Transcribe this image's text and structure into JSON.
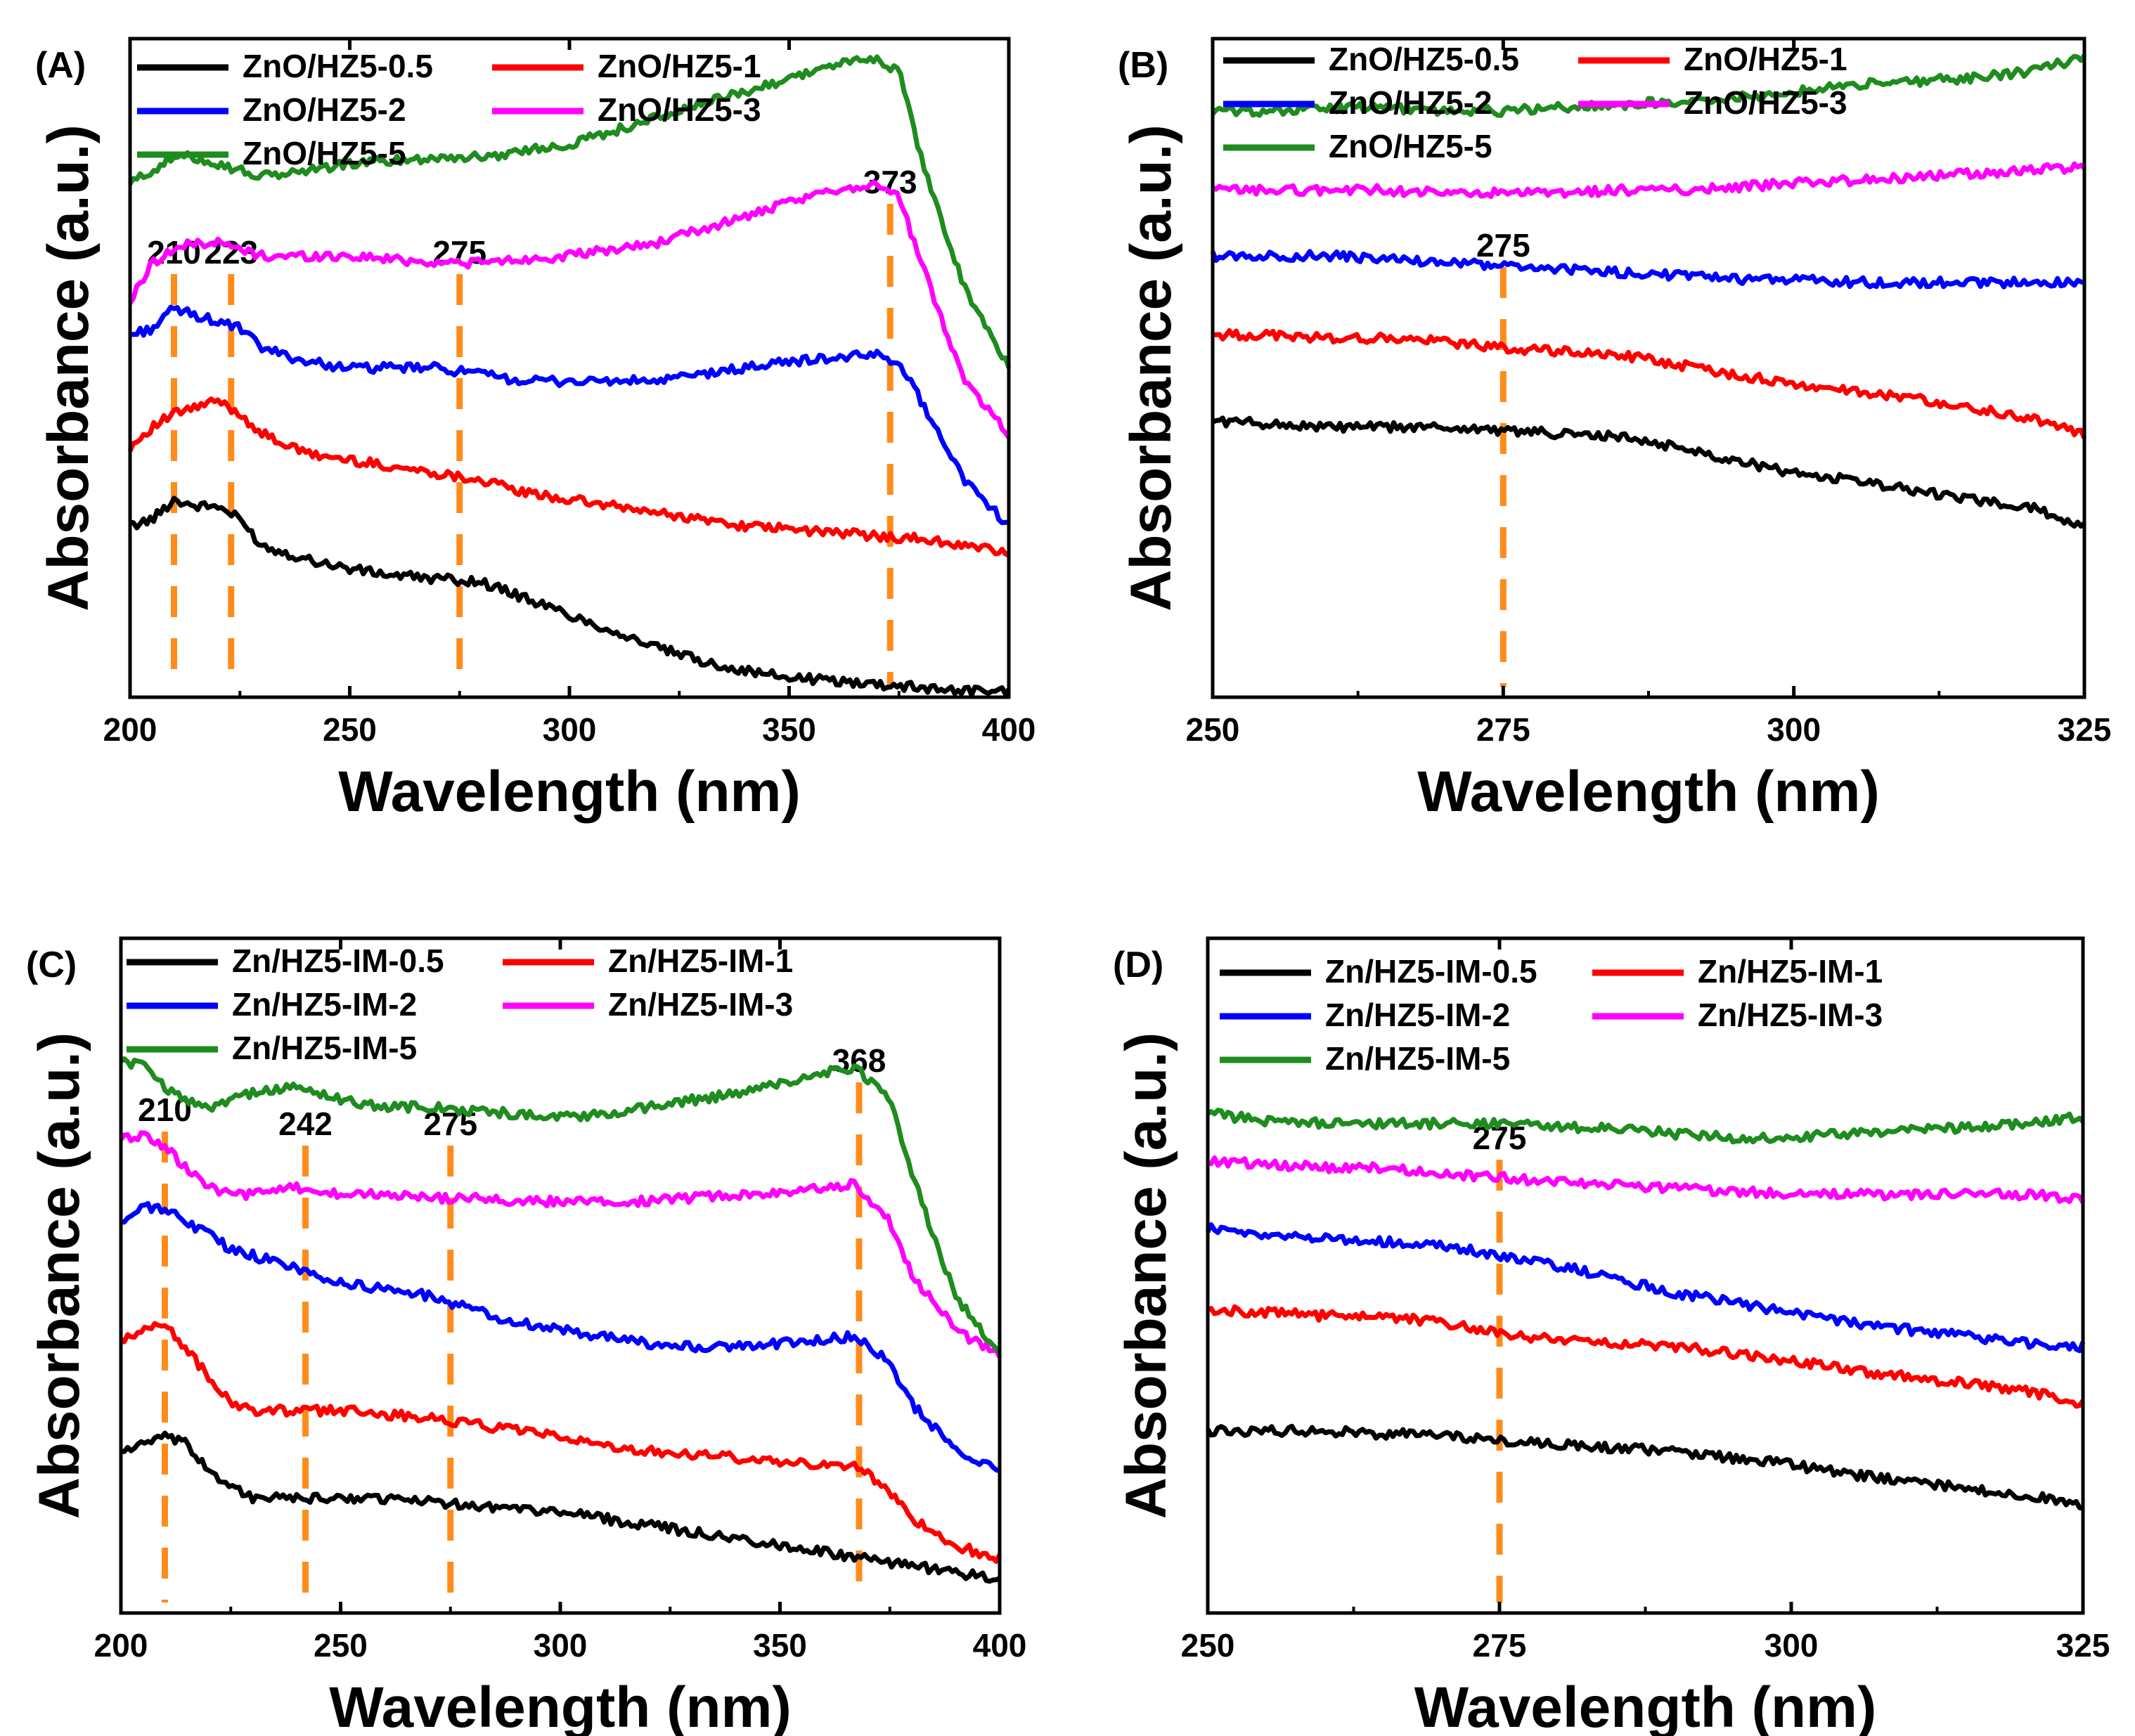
{
  "colors": {
    "series": [
      "#000000",
      "#ff0000",
      "#0000ff",
      "#ff00ff",
      "#1e8c1e"
    ],
    "peak_marker": "#ff8c1a"
  },
  "chart_data": [
    {
      "panel": "(A)",
      "type": "line",
      "xlabel": "Wavelength (nm)",
      "ylabel": "Absorbance (a.u.)",
      "xlim": [
        200,
        400
      ],
      "ylim": [
        0,
        100
      ],
      "xticks": [
        200,
        250,
        300,
        350,
        400
      ],
      "legend": "top-left",
      "peaks": [
        {
          "x": 210,
          "label": "210"
        },
        {
          "x": 223,
          "label": "223"
        },
        {
          "x": 275,
          "label": "275"
        },
        {
          "x": 373,
          "label": "373"
        }
      ],
      "series": [
        {
          "name": "ZnO/HZ5-0.5",
          "x": [
            200,
            205,
            210,
            215,
            220,
            225,
            230,
            240,
            250,
            260,
            270,
            280,
            290,
            300,
            310,
            320,
            330,
            340,
            350,
            360,
            370,
            380,
            390,
            400
          ],
          "y": [
            26,
            27,
            30,
            29,
            29,
            27,
            23,
            21,
            19.5,
            18.5,
            18,
            17.5,
            15,
            12.5,
            10,
            7.5,
            5.5,
            4,
            3,
            2.5,
            2,
            1.5,
            1,
            1
          ]
        },
        {
          "name": "ZnO/HZ5-1",
          "x": [
            200,
            205,
            210,
            215,
            220,
            225,
            230,
            240,
            250,
            260,
            270,
            280,
            290,
            300,
            310,
            320,
            330,
            340,
            350,
            360,
            370,
            380,
            390,
            400
          ],
          "y": [
            38,
            41,
            43,
            44,
            45,
            43,
            40,
            37,
            36,
            35,
            34,
            33,
            31,
            30,
            29,
            28,
            27,
            26,
            25.5,
            25,
            24.5,
            24,
            23,
            22
          ]
        },
        {
          "name": "ZnO/HZ5-2",
          "x": [
            200,
            205,
            210,
            215,
            220,
            225,
            230,
            240,
            250,
            260,
            270,
            280,
            290,
            300,
            310,
            320,
            330,
            340,
            350,
            360,
            370,
            375,
            380,
            390,
            400
          ],
          "y": [
            55,
            56,
            59,
            58,
            57,
            56,
            53,
            51,
            50,
            50,
            50,
            49,
            48,
            48,
            48,
            48,
            49,
            50,
            51,
            51.5,
            52,
            51,
            45,
            33,
            26
          ]
        },
        {
          "name": "ZnO/HZ5-3",
          "x": [
            200,
            205,
            210,
            215,
            220,
            225,
            230,
            240,
            250,
            260,
            270,
            280,
            290,
            300,
            310,
            320,
            330,
            340,
            350,
            360,
            370,
            375,
            380,
            390,
            400
          ],
          "y": [
            60,
            66,
            68,
            69,
            69,
            68,
            67,
            67,
            67,
            66.5,
            66,
            66,
            66.5,
            67,
            68,
            69,
            71,
            73,
            75,
            77,
            78,
            76,
            66,
            48,
            40
          ]
        },
        {
          "name": "ZnO/HZ5-5",
          "x": [
            200,
            205,
            210,
            215,
            220,
            225,
            230,
            240,
            250,
            260,
            270,
            280,
            290,
            300,
            310,
            320,
            330,
            340,
            350,
            360,
            370,
            375,
            380,
            390,
            400
          ],
          "y": [
            78,
            80,
            82,
            82,
            81,
            80,
            79,
            80,
            81,
            81.5,
            82,
            82,
            83,
            84,
            86,
            88,
            90,
            92,
            94,
            96,
            97,
            95,
            82,
            62,
            50
          ]
        }
      ]
    },
    {
      "panel": "(B)",
      "type": "line",
      "xlabel": "Wavelength (nm)",
      "ylabel": "Absorbance (a.u.)",
      "xlim": [
        250,
        325
      ],
      "ylim": [
        0,
        100
      ],
      "xticks": [
        250,
        275,
        300,
        325
      ],
      "legend": "top-left",
      "peaks": [
        {
          "x": 275,
          "label": "275"
        }
      ],
      "series": [
        {
          "name": "ZnO/HZ5-0.5",
          "x": [
            250,
            255,
            260,
            265,
            270,
            275,
            280,
            285,
            290,
            295,
            300,
            305,
            310,
            315,
            320,
            325
          ],
          "y": [
            42,
            41.5,
            41,
            41,
            41,
            40.5,
            40,
            39.5,
            38,
            36,
            34,
            33,
            31.5,
            30,
            29,
            26
          ]
        },
        {
          "name": "ZnO/HZ5-1",
          "x": [
            250,
            255,
            260,
            265,
            270,
            275,
            280,
            285,
            290,
            295,
            300,
            305,
            310,
            315,
            320,
            325
          ],
          "y": [
            55,
            55,
            54.5,
            54.5,
            54,
            53,
            52.5,
            52,
            50.5,
            49,
            47.5,
            46.5,
            45.5,
            44,
            42.5,
            40
          ]
        },
        {
          "name": "ZnO/HZ5-2",
          "x": [
            250,
            255,
            260,
            265,
            270,
            275,
            280,
            285,
            290,
            295,
            300,
            305,
            310,
            315,
            320,
            325
          ],
          "y": [
            67,
            67,
            67,
            66.5,
            66,
            65.5,
            65,
            64.5,
            64,
            63.5,
            63.5,
            63,
            63,
            63,
            63,
            63
          ]
        },
        {
          "name": "ZnO/HZ5-3",
          "x": [
            250,
            255,
            260,
            265,
            270,
            275,
            280,
            285,
            290,
            295,
            300,
            305,
            310,
            315,
            320,
            325
          ],
          "y": [
            77,
            77,
            77,
            77,
            76.5,
            76.5,
            76.5,
            77,
            77,
            77.5,
            78,
            78.5,
            79,
            79.5,
            80,
            80.5
          ]
        },
        {
          "name": "ZnO/HZ5-5",
          "x": [
            250,
            255,
            260,
            265,
            270,
            275,
            280,
            285,
            290,
            295,
            300,
            305,
            310,
            315,
            320,
            325
          ],
          "y": [
            89,
            89,
            89.5,
            89.5,
            89,
            89,
            89.5,
            90,
            90.5,
            91,
            92,
            93,
            93.5,
            94,
            95,
            97
          ]
        }
      ]
    },
    {
      "panel": "(C)",
      "type": "line",
      "xlabel": "Wavelength (nm)",
      "ylabel": "Absorbance (a.u.)",
      "xlim": [
        200,
        400
      ],
      "ylim": [
        0,
        100
      ],
      "xticks": [
        200,
        250,
        300,
        350,
        400
      ],
      "legend": "top-left",
      "peaks": [
        {
          "x": 210,
          "label": "210"
        },
        {
          "x": 242,
          "label": "242"
        },
        {
          "x": 275,
          "label": "275"
        },
        {
          "x": 368,
          "label": "368"
        }
      ],
      "series": [
        {
          "name": "Zn/HZ5-IM-0.5",
          "x": [
            200,
            205,
            210,
            215,
            220,
            225,
            230,
            240,
            250,
            260,
            270,
            280,
            290,
            300,
            310,
            320,
            330,
            340,
            350,
            360,
            370,
            380,
            390,
            400
          ],
          "y": [
            24,
            25,
            26,
            25,
            21,
            19,
            17,
            17,
            17,
            17,
            16.5,
            16,
            15.5,
            15,
            14,
            13,
            12,
            11,
            10,
            9,
            8,
            7,
            6,
            5
          ]
        },
        {
          "name": "Zn/HZ5-IM-1",
          "x": [
            200,
            205,
            210,
            215,
            220,
            225,
            230,
            240,
            250,
            260,
            270,
            280,
            290,
            300,
            310,
            320,
            330,
            340,
            350,
            360,
            367,
            375,
            380,
            390,
            400
          ],
          "y": [
            40,
            42,
            43,
            39,
            35,
            31,
            30,
            30,
            30,
            29.5,
            29,
            28,
            27,
            26,
            25,
            24,
            23.5,
            23,
            22.5,
            22,
            22,
            18,
            14,
            10,
            8
          ]
        },
        {
          "name": "Zn/HZ5-IM-2",
          "x": [
            200,
            205,
            210,
            215,
            220,
            225,
            230,
            240,
            250,
            260,
            270,
            280,
            290,
            300,
            310,
            320,
            330,
            340,
            350,
            360,
            367,
            375,
            380,
            390,
            400
          ],
          "y": [
            58,
            60,
            60,
            58,
            56,
            54,
            53,
            51,
            49,
            48,
            47,
            45,
            43,
            42,
            41,
            40,
            39.5,
            39.5,
            40,
            40.5,
            41,
            37,
            31,
            24,
            21
          ]
        },
        {
          "name": "Zn/HZ5-IM-3",
          "x": [
            200,
            205,
            210,
            215,
            220,
            225,
            230,
            240,
            250,
            260,
            270,
            280,
            290,
            300,
            310,
            320,
            330,
            340,
            350,
            360,
            367,
            375,
            380,
            390,
            400
          ],
          "y": [
            70,
            71,
            69,
            66,
            63,
            62,
            62,
            63,
            62,
            62,
            61.5,
            61.5,
            61,
            61,
            61,
            61,
            61.5,
            62,
            62.5,
            63,
            63.5,
            58,
            50,
            42,
            38
          ]
        },
        {
          "name": "Zn/HZ5-IM-5",
          "x": [
            200,
            205,
            210,
            215,
            220,
            225,
            230,
            240,
            250,
            260,
            270,
            280,
            290,
            300,
            310,
            320,
            330,
            340,
            350,
            360,
            367,
            375,
            380,
            390,
            400
          ],
          "y": [
            82,
            81,
            78,
            76,
            75,
            76,
            77,
            78,
            76,
            75,
            75,
            74.5,
            74,
            73.5,
            74,
            75,
            76,
            77,
            78.5,
            80,
            81,
            76,
            65,
            47,
            38
          ]
        }
      ]
    },
    {
      "panel": "(D)",
      "type": "line",
      "xlabel": "Wavelength (nm)",
      "ylabel": "Absorbance (a.u.)",
      "xlim": [
        250,
        325
      ],
      "ylim": [
        0,
        100
      ],
      "xticks": [
        250,
        275,
        300,
        325
      ],
      "legend": "top-left",
      "peaks": [
        {
          "x": 275,
          "label": "275"
        }
      ],
      "series": [
        {
          "name": "Zn/HZ5-IM-0.5",
          "x": [
            250,
            255,
            260,
            265,
            270,
            275,
            280,
            285,
            290,
            295,
            300,
            305,
            310,
            315,
            320,
            325
          ],
          "y": [
            27,
            27,
            27,
            26.5,
            26.5,
            25.5,
            25,
            24.5,
            24,
            23,
            22,
            20.5,
            19.5,
            18.5,
            17.5,
            16
          ]
        },
        {
          "name": "Zn/HZ5-IM-1",
          "x": [
            250,
            255,
            260,
            265,
            270,
            275,
            280,
            285,
            290,
            295,
            300,
            305,
            310,
            315,
            320,
            325
          ],
          "y": [
            45,
            44.5,
            44,
            44,
            43,
            41.5,
            40.5,
            40,
            39.5,
            38.5,
            37.5,
            36,
            35,
            34,
            33,
            31
          ]
        },
        {
          "name": "Zn/HZ5-IM-2",
          "x": [
            250,
            255,
            260,
            265,
            270,
            275,
            280,
            285,
            290,
            295,
            300,
            305,
            310,
            315,
            320,
            325
          ],
          "y": [
            57,
            56,
            55.5,
            55,
            54.5,
            53,
            51.5,
            49.5,
            47.5,
            46,
            44.5,
            43,
            42,
            41,
            40,
            39.5
          ]
        },
        {
          "name": "Zn/HZ5-IM-3",
          "x": [
            250,
            255,
            260,
            265,
            270,
            275,
            280,
            285,
            290,
            295,
            300,
            305,
            310,
            315,
            320,
            325
          ],
          "y": [
            67,
            66.5,
            66,
            66,
            65,
            64.5,
            64,
            63.5,
            63,
            62.5,
            62,
            62,
            62,
            62,
            62,
            61.5
          ]
        },
        {
          "name": "Zn/HZ5-IM-5",
          "x": [
            250,
            255,
            260,
            265,
            270,
            275,
            280,
            285,
            290,
            295,
            300,
            305,
            310,
            315,
            320,
            325
          ],
          "y": [
            74,
            73,
            72.5,
            72.5,
            72.5,
            72.5,
            72,
            72,
            71,
            70.5,
            70.5,
            71,
            71.5,
            72,
            72.5,
            73.5
          ]
        }
      ]
    }
  ]
}
